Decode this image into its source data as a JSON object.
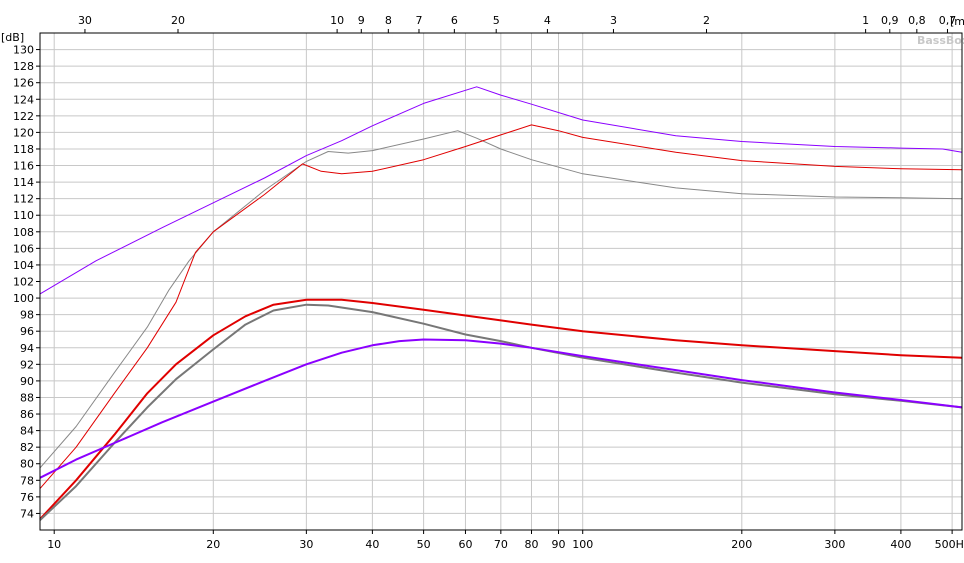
{
  "chart_data": {
    "type": "line",
    "x_scale": "log",
    "y_label": "[dB]",
    "x_unit_label": "Hz",
    "top_axis_unit_label": "[m]",
    "watermark": "BassBox",
    "grid": true,
    "xlim": [
      9.4,
      522
    ],
    "ylim": [
      72,
      132
    ],
    "y_ticks": [
      74,
      76,
      78,
      80,
      82,
      84,
      86,
      88,
      90,
      92,
      94,
      96,
      98,
      100,
      102,
      104,
      106,
      108,
      110,
      112,
      114,
      116,
      118,
      120,
      122,
      124,
      126,
      128,
      130
    ],
    "x_ticks": [
      {
        "v": 10,
        "label": "10"
      },
      {
        "v": 20,
        "label": "20"
      },
      {
        "v": 30,
        "label": "30"
      },
      {
        "v": 40,
        "label": "40"
      },
      {
        "v": 50,
        "label": "50"
      },
      {
        "v": 60,
        "label": "60"
      },
      {
        "v": 70,
        "label": "70"
      },
      {
        "v": 80,
        "label": "80"
      },
      {
        "v": 90,
        "label": "90"
      },
      {
        "v": 100,
        "label": "100"
      },
      {
        "v": 200,
        "label": "200"
      },
      {
        "v": 300,
        "label": "300"
      },
      {
        "v": 400,
        "label": "400"
      },
      {
        "v": 500,
        "label": "500"
      }
    ],
    "top_ticks": [
      {
        "m": 30,
        "label": "30"
      },
      {
        "m": 20,
        "label": "20"
      },
      {
        "m": 10,
        "label": "10"
      },
      {
        "m": 9,
        "label": "9"
      },
      {
        "m": 8,
        "label": "8"
      },
      {
        "m": 7,
        "label": "7"
      },
      {
        "m": 6,
        "label": "6"
      },
      {
        "m": 5,
        "label": "5"
      },
      {
        "m": 4,
        "label": "4"
      },
      {
        "m": 3,
        "label": "3"
      },
      {
        "m": 2,
        "label": "2"
      },
      {
        "m": 1,
        "label": "1"
      },
      {
        "m": 0.9,
        "label": "0,9"
      },
      {
        "m": 0.8,
        "label": "0,8"
      },
      {
        "m": 0.7,
        "label": "0,7"
      }
    ],
    "series": [
      {
        "color": "#8b00ff",
        "width": 1,
        "points": [
          [
            9.4,
            100.5
          ],
          [
            12,
            104.5
          ],
          [
            16,
            108.5
          ],
          [
            20,
            111.5
          ],
          [
            25,
            114.5
          ],
          [
            30,
            117.2
          ],
          [
            35,
            119
          ],
          [
            40,
            120.8
          ],
          [
            50,
            123.5
          ],
          [
            63,
            125.5
          ],
          [
            70,
            124.5
          ],
          [
            80,
            123.4
          ],
          [
            100,
            121.5
          ],
          [
            150,
            119.6
          ],
          [
            200,
            118.9
          ],
          [
            300,
            118.3
          ],
          [
            400,
            118.1
          ],
          [
            480,
            118
          ],
          [
            522,
            117.6
          ]
        ]
      },
      {
        "color": "#888888",
        "width": 1,
        "points": [
          [
            9.4,
            79.5
          ],
          [
            11,
            84.5
          ],
          [
            13,
            91
          ],
          [
            15,
            96.5
          ],
          [
            16.5,
            101
          ],
          [
            18,
            104.5
          ],
          [
            20,
            108
          ],
          [
            25,
            113
          ],
          [
            30,
            116.5
          ],
          [
            33,
            117.7
          ],
          [
            36,
            117.5
          ],
          [
            40,
            117.8
          ],
          [
            50,
            119.2
          ],
          [
            58,
            120.2
          ],
          [
            63,
            119.3
          ],
          [
            70,
            118
          ],
          [
            80,
            116.7
          ],
          [
            100,
            115
          ],
          [
            150,
            113.3
          ],
          [
            200,
            112.6
          ],
          [
            300,
            112.2
          ],
          [
            400,
            112.1
          ],
          [
            522,
            112
          ]
        ]
      },
      {
        "color": "#e00000",
        "width": 1,
        "points": [
          [
            9.4,
            77
          ],
          [
            11,
            82
          ],
          [
            13,
            88.5
          ],
          [
            15,
            94
          ],
          [
            17,
            99.5
          ],
          [
            18.5,
            105.5
          ],
          [
            20,
            108
          ],
          [
            25,
            112.5
          ],
          [
            29.5,
            116.2
          ],
          [
            32,
            115.3
          ],
          [
            35,
            115
          ],
          [
            40,
            115.3
          ],
          [
            50,
            116.7
          ],
          [
            60,
            118.3
          ],
          [
            70,
            119.7
          ],
          [
            80,
            120.9
          ],
          [
            90,
            120.2
          ],
          [
            100,
            119.4
          ],
          [
            150,
            117.6
          ],
          [
            200,
            116.6
          ],
          [
            300,
            115.9
          ],
          [
            400,
            115.6
          ],
          [
            522,
            115.5
          ]
        ]
      },
      {
        "color": "#e00000",
        "width": 2,
        "points": [
          [
            9.4,
            73.3
          ],
          [
            11,
            78
          ],
          [
            13,
            83.5
          ],
          [
            15,
            88.5
          ],
          [
            17,
            92
          ],
          [
            20,
            95.5
          ],
          [
            23,
            97.8
          ],
          [
            26,
            99.2
          ],
          [
            30,
            99.8
          ],
          [
            35,
            99.8
          ],
          [
            40,
            99.4
          ],
          [
            50,
            98.6
          ],
          [
            60,
            97.9
          ],
          [
            70,
            97.3
          ],
          [
            80,
            96.8
          ],
          [
            100,
            96
          ],
          [
            150,
            94.9
          ],
          [
            200,
            94.3
          ],
          [
            300,
            93.6
          ],
          [
            400,
            93.1
          ],
          [
            522,
            92.8
          ]
        ]
      },
      {
        "color": "#777777",
        "width": 2,
        "points": [
          [
            9.4,
            73.2
          ],
          [
            11,
            77.3
          ],
          [
            13,
            82.5
          ],
          [
            15,
            86.8
          ],
          [
            17,
            90.2
          ],
          [
            20,
            93.8
          ],
          [
            23,
            96.8
          ],
          [
            26,
            98.5
          ],
          [
            30,
            99.2
          ],
          [
            33,
            99.1
          ],
          [
            40,
            98.3
          ],
          [
            50,
            96.9
          ],
          [
            60,
            95.6
          ],
          [
            70,
            94.8
          ],
          [
            80,
            94
          ],
          [
            100,
            92.8
          ],
          [
            150,
            91
          ],
          [
            200,
            89.8
          ],
          [
            300,
            88.4
          ],
          [
            400,
            87.6
          ],
          [
            522,
            86.8
          ]
        ]
      },
      {
        "color": "#8b00ff",
        "width": 2,
        "points": [
          [
            9.4,
            78.3
          ],
          [
            11,
            80.5
          ],
          [
            13,
            82.5
          ],
          [
            16,
            85
          ],
          [
            20,
            87.5
          ],
          [
            25,
            90
          ],
          [
            30,
            92
          ],
          [
            35,
            93.4
          ],
          [
            40,
            94.3
          ],
          [
            45,
            94.8
          ],
          [
            50,
            95
          ],
          [
            60,
            94.9
          ],
          [
            70,
            94.5
          ],
          [
            80,
            94
          ],
          [
            100,
            93
          ],
          [
            150,
            91.3
          ],
          [
            200,
            90.1
          ],
          [
            300,
            88.6
          ],
          [
            400,
            87.7
          ],
          [
            522,
            86.8
          ]
        ]
      }
    ]
  }
}
